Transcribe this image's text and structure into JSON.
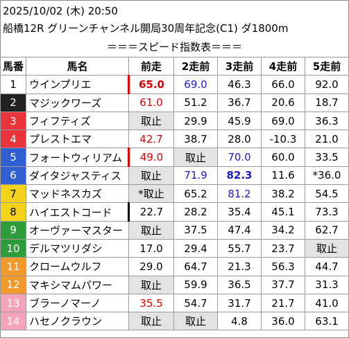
{
  "header": {
    "line1": "2025/10/02 (木) 20:50",
    "line2": "船橋12R グリーンチャンネル開局30周年記念(C1) ダ1800m",
    "line3": "＝＝＝スピード指数表＝＝＝"
  },
  "columns": [
    "馬番",
    "馬名",
    "前走",
    "2走前",
    "3走前",
    "4走前",
    "5走前"
  ],
  "colors": {
    "frame1": "#ffffff",
    "frame2": "#222222",
    "frame3": "#e8343a",
    "frame4": "#2f5fd0",
    "frame5": "#f2d21a",
    "frame6": "#2e9c3a",
    "frame7": "#f39a2c",
    "frame8": "#f5a3b8",
    "red": "#e00000",
    "blue": "#1a1acc",
    "unavailable_bg": "#e3e3e3"
  },
  "rows": [
    {
      "no": "1",
      "name": "ウインプリエ",
      "c": [
        "65.0",
        "69.0",
        "46.3",
        "66.0",
        "92.0"
      ]
    },
    {
      "no": "2",
      "name": "マジックワーズ",
      "c": [
        "61.0",
        "51.2",
        "36.7",
        "20.6",
        "18.7"
      ]
    },
    {
      "no": "3",
      "name": "フィフティズ",
      "c": [
        "取止",
        "29.9",
        "45.9",
        "69.0",
        "36.3"
      ]
    },
    {
      "no": "4",
      "name": "プレストエマ",
      "c": [
        "42.7",
        "38.7",
        "28.0",
        "-10.3",
        "21.0"
      ]
    },
    {
      "no": "5",
      "name": "フォートウィリアム",
      "c": [
        "49.0",
        "取止",
        "70.0",
        "60.0",
        "33.5"
      ]
    },
    {
      "no": "6",
      "name": "ダイタジャスティス",
      "c": [
        "取止",
        "71.9",
        "82.3",
        "11.6",
        "*36.0"
      ]
    },
    {
      "no": "7",
      "name": "マッドネスカズ",
      "c": [
        "*取止",
        "65.2",
        "81.2",
        "38.2",
        "54.5"
      ]
    },
    {
      "no": "8",
      "name": "ハイエストコード",
      "c": [
        "22.7",
        "28.2",
        "35.4",
        "45.1",
        "73.3"
      ]
    },
    {
      "no": "9",
      "name": "オーヴァーマスター",
      "c": [
        "取止",
        "37.5",
        "47.4",
        "34.2",
        "62.7"
      ]
    },
    {
      "no": "10",
      "name": "デルマツリダシ",
      "c": [
        "17.0",
        "29.4",
        "55.7",
        "23.7",
        "取止"
      ]
    },
    {
      "no": "11",
      "name": "クロームウルフ",
      "c": [
        "29.0",
        "64.7",
        "21.3",
        "56.3",
        "44.7"
      ]
    },
    {
      "no": "12",
      "name": "マキシマムパワー",
      "c": [
        "取止",
        "59.9",
        "36.5",
        "37.7",
        "31.3"
      ]
    },
    {
      "no": "13",
      "name": "ブラーノマーノ",
      "c": [
        "35.5",
        "54.7",
        "31.7",
        "21.7",
        "41.0"
      ]
    },
    {
      "no": "14",
      "name": "ハセノクラウン",
      "c": [
        "取止",
        "取止",
        "4.8",
        "36.0",
        "63.1"
      ]
    }
  ]
}
